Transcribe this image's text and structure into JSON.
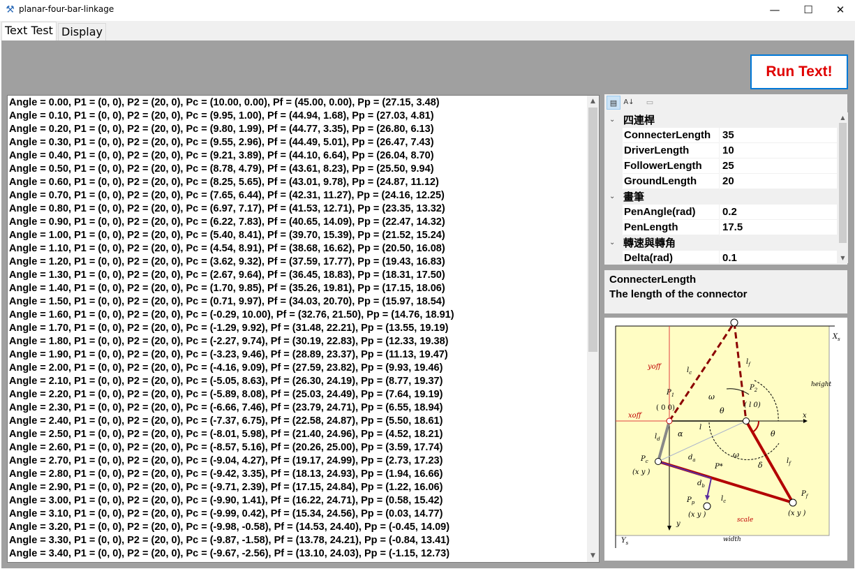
{
  "window": {
    "title": "planar-four-bar-linkage",
    "minimize": "—",
    "maximize": "☐",
    "close": "✕"
  },
  "tabs": [
    {
      "label": "Text Test",
      "active": true
    },
    {
      "label": "Display",
      "active": false
    }
  ],
  "run_button": {
    "label": "Run Text!"
  },
  "output_lines": [
    "Angle = 0.00, P1 = (0, 0), P2 = (20, 0), Pc = (10.00, 0.00), Pf = (45.00, 0.00), Pp = (27.15, 3.48)",
    "Angle = 0.10, P1 = (0, 0), P2 = (20, 0), Pc = (9.95, 1.00), Pf = (44.94, 1.68), Pp = (27.03, 4.81)",
    "Angle = 0.20, P1 = (0, 0), P2 = (20, 0), Pc = (9.80, 1.99), Pf = (44.77, 3.35), Pp = (26.80, 6.13)",
    "Angle = 0.30, P1 = (0, 0), P2 = (20, 0), Pc = (9.55, 2.96), Pf = (44.49, 5.01), Pp = (26.47, 7.43)",
    "Angle = 0.40, P1 = (0, 0), P2 = (20, 0), Pc = (9.21, 3.89), Pf = (44.10, 6.64), Pp = (26.04, 8.70)",
    "Angle = 0.50, P1 = (0, 0), P2 = (20, 0), Pc = (8.78, 4.79), Pf = (43.61, 8.23), Pp = (25.50, 9.94)",
    "Angle = 0.60, P1 = (0, 0), P2 = (20, 0), Pc = (8.25, 5.65), Pf = (43.01, 9.78), Pp = (24.87, 11.12)",
    "Angle = 0.70, P1 = (0, 0), P2 = (20, 0), Pc = (7.65, 6.44), Pf = (42.31, 11.27), Pp = (24.16, 12.25)",
    "Angle = 0.80, P1 = (0, 0), P2 = (20, 0), Pc = (6.97, 7.17), Pf = (41.53, 12.71), Pp = (23.35, 13.32)",
    "Angle = 0.90, P1 = (0, 0), P2 = (20, 0), Pc = (6.22, 7.83), Pf = (40.65, 14.09), Pp = (22.47, 14.32)",
    "Angle = 1.00, P1 = (0, 0), P2 = (20, 0), Pc = (5.40, 8.41), Pf = (39.70, 15.39), Pp = (21.52, 15.24)",
    "Angle = 1.10, P1 = (0, 0), P2 = (20, 0), Pc = (4.54, 8.91), Pf = (38.68, 16.62), Pp = (20.50, 16.08)",
    "Angle = 1.20, P1 = (0, 0), P2 = (20, 0), Pc = (3.62, 9.32), Pf = (37.59, 17.77), Pp = (19.43, 16.83)",
    "Angle = 1.30, P1 = (0, 0), P2 = (20, 0), Pc = (2.67, 9.64), Pf = (36.45, 18.83), Pp = (18.31, 17.50)",
    "Angle = 1.40, P1 = (0, 0), P2 = (20, 0), Pc = (1.70, 9.85), Pf = (35.26, 19.81), Pp = (17.15, 18.06)",
    "Angle = 1.50, P1 = (0, 0), P2 = (20, 0), Pc = (0.71, 9.97), Pf = (34.03, 20.70), Pp = (15.97, 18.54)",
    "Angle = 1.60, P1 = (0, 0), P2 = (20, 0), Pc = (-0.29, 10.00), Pf = (32.76, 21.50), Pp = (14.76, 18.91)",
    "Angle = 1.70, P1 = (0, 0), P2 = (20, 0), Pc = (-1.29, 9.92), Pf = (31.48, 22.21), Pp = (13.55, 19.19)",
    "Angle = 1.80, P1 = (0, 0), P2 = (20, 0), Pc = (-2.27, 9.74), Pf = (30.19, 22.83), Pp = (12.33, 19.38)",
    "Angle = 1.90, P1 = (0, 0), P2 = (20, 0), Pc = (-3.23, 9.46), Pf = (28.89, 23.37), Pp = (11.13, 19.47)",
    "Angle = 2.00, P1 = (0, 0), P2 = (20, 0), Pc = (-4.16, 9.09), Pf = (27.59, 23.82), Pp = (9.93, 19.46)",
    "Angle = 2.10, P1 = (0, 0), P2 = (20, 0), Pc = (-5.05, 8.63), Pf = (26.30, 24.19), Pp = (8.77, 19.37)",
    "Angle = 2.20, P1 = (0, 0), P2 = (20, 0), Pc = (-5.89, 8.08), Pf = (25.03, 24.49), Pp = (7.64, 19.19)",
    "Angle = 2.30, P1 = (0, 0), P2 = (20, 0), Pc = (-6.66, 7.46), Pf = (23.79, 24.71), Pp = (6.55, 18.94)",
    "Angle = 2.40, P1 = (0, 0), P2 = (20, 0), Pc = (-7.37, 6.75), Pf = (22.58, 24.87), Pp = (5.50, 18.61)",
    "Angle = 2.50, P1 = (0, 0), P2 = (20, 0), Pc = (-8.01, 5.98), Pf = (21.40, 24.96), Pp = (4.52, 18.21)",
    "Angle = 2.60, P1 = (0, 0), P2 = (20, 0), Pc = (-8.57, 5.16), Pf = (20.26, 25.00), Pp = (3.59, 17.74)",
    "Angle = 2.70, P1 = (0, 0), P2 = (20, 0), Pc = (-9.04, 4.27), Pf = (19.17, 24.99), Pp = (2.73, 17.23)",
    "Angle = 2.80, P1 = (0, 0), P2 = (20, 0), Pc = (-9.42, 3.35), Pf = (18.13, 24.93), Pp = (1.94, 16.66)",
    "Angle = 2.90, P1 = (0, 0), P2 = (20, 0), Pc = (-9.71, 2.39), Pf = (17.15, 24.84), Pp = (1.22, 16.06)",
    "Angle = 3.00, P1 = (0, 0), P2 = (20, 0), Pc = (-9.90, 1.41), Pf = (16.22, 24.71), Pp = (0.58, 15.42)",
    "Angle = 3.10, P1 = (0, 0), P2 = (20, 0), Pc = (-9.99, 0.42), Pf = (15.34, 24.56), Pp = (0.03, 14.77)",
    "Angle = 3.20, P1 = (0, 0), P2 = (20, 0), Pc = (-9.98, -0.58), Pf = (14.53, 24.40), Pp = (-0.45, 14.09)",
    "Angle = 3.30, P1 = (0, 0), P2 = (20, 0), Pc = (-9.87, -1.58), Pf = (13.78, 24.21), Pp = (-0.84, 13.41)",
    "Angle = 3.40, P1 = (0, 0), P2 = (20, 0), Pc = (-9.67, -2.56), Pf = (13.10, 24.03), Pp = (-1.15, 12.73)"
  ],
  "property_grid": {
    "categories": [
      {
        "label": "四連桿",
        "expanded": true,
        "props": [
          {
            "name": "ConnecterLength",
            "value": "35"
          },
          {
            "name": "DriverLength",
            "value": "10"
          },
          {
            "name": "FollowerLength",
            "value": "25"
          },
          {
            "name": "GroundLength",
            "value": "20"
          }
        ]
      },
      {
        "label": "畫筆",
        "expanded": true,
        "props": [
          {
            "name": "PenAngle(rad)",
            "value": "0.2"
          },
          {
            "name": "PenLength",
            "value": "17.5"
          }
        ]
      },
      {
        "label": "轉速與轉角",
        "expanded": true,
        "props": [
          {
            "name": "Delta(rad)",
            "value": "0.1"
          }
        ]
      }
    ],
    "selected_name": "ConnecterLength",
    "selected_description": "The length of the connector"
  },
  "diagram": {
    "labels": {
      "xs": "X",
      "xs_sub": "s",
      "ys": "Y",
      "ys_sub": "s",
      "x": "x",
      "y": "y",
      "yoff": "yoff",
      "xoff": "xoff",
      "height": "height",
      "width": "width",
      "scale": "scale",
      "p1": "P",
      "p1_sub": "1",
      "p1_coords": "( 0   0)",
      "p2": "P",
      "p2_sub": "2",
      "p2_coords": "( l  0)",
      "p2_coords_sub": "g",
      "pc": "P",
      "pc_sub": "c",
      "pc_coords": "(x   y )",
      "pc_coords_sub": "c   c",
      "pf": "P",
      "pf_sub": "f",
      "pf_coords": "(x   y )",
      "pf_coords_sub": "f   f",
      "pp": "P",
      "pp_sub": "p",
      "pp_coords": "(x   y )",
      "pp_coords_sub": "p   p",
      "pstar": "P*",
      "lc_top": "l",
      "lc_top_sub": "c",
      "lf_top": "l",
      "lf_top_sub": "f",
      "l_mid": "l",
      "ld": "l",
      "ld_sub": "d",
      "lf_right": "l",
      "lf_right_sub": "f",
      "lc_bottom": "l",
      "lc_bottom_sub": "c",
      "da": "d",
      "da_sub": "a",
      "db": "d",
      "db_sub": "b",
      "omega": "ω",
      "theta": "θ",
      "alpha": "α",
      "omega2": "ω",
      "theta2": "θ",
      "delta": "δ"
    },
    "colors": {
      "background": "#fffdc4",
      "link": "#b30000",
      "ground": "#000000",
      "pen": "#5a2d9e",
      "offset_lines": "#e04040"
    }
  },
  "colors": {
    "run_text": "#e00000",
    "run_border": "#0078d7",
    "panel_gray": "#a0a0a0"
  }
}
